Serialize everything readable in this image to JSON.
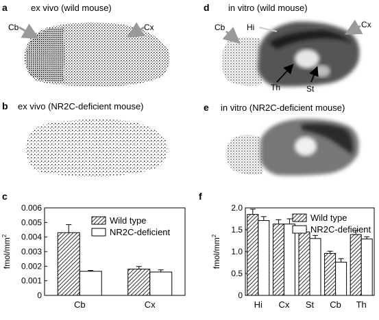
{
  "panels": {
    "a": {
      "letter": "a",
      "caption": "ex vivo (wild mouse)",
      "labels": {
        "cb": "Cb",
        "cx": "Cx"
      }
    },
    "b": {
      "letter": "b",
      "caption": "ex vivo (NR2C-deficient mouse)"
    },
    "d": {
      "letter": "d",
      "caption": "in vitro (wild mouse)",
      "labels": {
        "cb": "Cb",
        "hi": "Hi",
        "cx": "Cx",
        "th": "Th",
        "st": "St"
      }
    },
    "e": {
      "letter": "e",
      "caption": "in vitro (NR2C-deficient mouse)"
    },
    "c": {
      "letter": "c"
    },
    "f": {
      "letter": "f"
    }
  },
  "chart_data": [
    {
      "id": "c",
      "type": "bar",
      "categories": [
        "Cb",
        "Cx"
      ],
      "ylabel": "fmol/mm2",
      "ylim": [
        0,
        0.006
      ],
      "yticks": [
        "0",
        "0.001",
        "0.002",
        "0.003",
        "0.004",
        "0.005",
        "0.006"
      ],
      "series": [
        {
          "name": "Wild type",
          "values": [
            0.0043,
            0.0018
          ],
          "errors": [
            0.00055,
            0.00018
          ]
        },
        {
          "name": "NR2C-deficient",
          "values": [
            0.00165,
            0.0016
          ],
          "errors": [
            6e-05,
            0.00015
          ]
        }
      ],
      "legend_position": "top-right"
    },
    {
      "id": "f",
      "type": "bar",
      "categories": [
        "Hi",
        "Cx",
        "St",
        "Cb",
        "Th"
      ],
      "ylabel": "fmol/mm2",
      "ylim": [
        0,
        2.0
      ],
      "yticks": [
        "0",
        "0.5",
        "1.0",
        "1.5",
        "2.0"
      ],
      "series": [
        {
          "name": "Wild type",
          "values": [
            1.85,
            1.63,
            1.45,
            0.96,
            1.39
          ],
          "errors": [
            0.12,
            0.1,
            0.06,
            0.05,
            0.1
          ]
        },
        {
          "name": "NR2C-deficient",
          "values": [
            1.71,
            1.63,
            1.3,
            0.76,
            1.29
          ],
          "errors": [
            0.09,
            0.12,
            0.07,
            0.08,
            0.05
          ]
        }
      ],
      "legend_position": "top-right"
    }
  ]
}
